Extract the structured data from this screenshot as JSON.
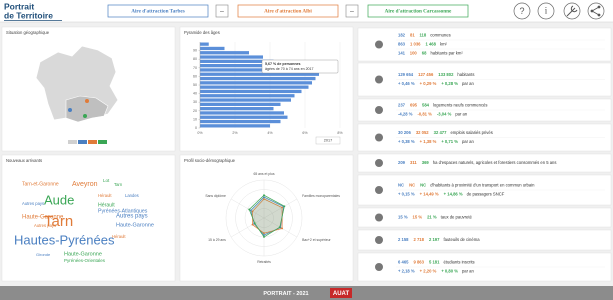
{
  "header": {
    "title_line1": "Portrait",
    "title_line2": "de Territoire",
    "selectors": [
      {
        "label": "Aire d'attraction Tarbes",
        "color": "#4a7fc1"
      },
      {
        "label": "Aire d'attraction Albi",
        "color": "#e07b39"
      },
      {
        "label": "Aire d'attraction Carcassonne",
        "color": "#3aa655"
      }
    ],
    "remove_label": "–",
    "help_icon": "?",
    "info_icon": "i"
  },
  "map": {
    "title": "Situation géographique"
  },
  "chart_data": [
    {
      "type": "hbar",
      "title": "Pyramide des âges",
      "x": [
        0,
        5,
        10,
        15,
        20,
        25,
        30,
        35,
        40,
        45,
        50,
        55,
        60,
        65,
        70,
        75,
        80,
        85,
        90,
        95
      ],
      "values": [
        4.0,
        4.6,
        5.0,
        4.8,
        4.2,
        4.6,
        5.2,
        5.4,
        5.8,
        6.2,
        6.4,
        6.6,
        6.8,
        6.4,
        5.67,
        4.2,
        3.6,
        2.8,
        1.4,
        0.5
      ],
      "color": "#5b8fd9",
      "xlim": [
        0,
        8
      ],
      "xticks": [
        {
          "value": 0,
          "label": "0%"
        },
        {
          "value": 2,
          "label": "2%"
        },
        {
          "value": 4,
          "label": "4%"
        },
        {
          "value": 6,
          "label": "6%"
        },
        {
          "value": 8,
          "label": "8%"
        }
      ],
      "ylim": [
        0,
        100
      ],
      "yticks": [
        0,
        10,
        20,
        30,
        40,
        50,
        60,
        70,
        80,
        90
      ],
      "grid": true,
      "tooltip": [
        "5,67 % de personnes",
        "âgées de 70 à 74 ans en 2017"
      ],
      "legend": "2017"
    },
    {
      "type": "radar",
      "title": "Profil socio-démographique",
      "categories": [
        "65 ans et plus",
        "Familles monoparentales",
        "Bac+2 et supérieur",
        "Retraités",
        "15 à 29 ans",
        "Sans diplôme"
      ],
      "series": [
        {
          "color": "#4a7fc1",
          "values": [
            55,
            60,
            50,
            45,
            30,
            40
          ]
        },
        {
          "color": "#e07b39",
          "values": [
            50,
            55,
            55,
            40,
            35,
            35
          ]
        },
        {
          "color": "#3aa655",
          "values": [
            60,
            62,
            48,
            50,
            28,
            45
          ]
        }
      ],
      "rlim": [
        0,
        100
      ],
      "rticks": [
        25,
        50,
        75,
        100
      ]
    }
  ],
  "word_cloud": {
    "title": "Nouveaux arrivants",
    "words": [
      {
        "text": "Tarn-et-Garonne",
        "color": "#e07b39"
      },
      {
        "text": "Aveyron",
        "color": "#e07b39"
      },
      {
        "text": "Lot",
        "color": "#3aa655"
      },
      {
        "text": "Tarn",
        "color": "#3aa655"
      },
      {
        "text": "Hérault",
        "color": "#e07b39"
      },
      {
        "text": "Landes",
        "color": "#4a7fc1"
      },
      {
        "text": "Autres pays",
        "color": "#4a7fc1"
      },
      {
        "text": "Aude",
        "color": "#3aa655"
      },
      {
        "text": "Hérault",
        "color": "#3aa655"
      },
      {
        "text": "Pyrénées-Atlantiques",
        "color": "#4a7fc1"
      },
      {
        "text": "Haute-Garonne",
        "color": "#e07b39"
      },
      {
        "text": "Tarn",
        "color": "#e07b39"
      },
      {
        "text": "Autres pays",
        "color": "#4a7fc1"
      },
      {
        "text": "Autres pays",
        "color": "#e07b39"
      },
      {
        "text": "Haute-Garonne",
        "color": "#4a7fc1"
      },
      {
        "text": "Hautes-Pyrénées",
        "color": "#4a7fc1"
      },
      {
        "text": "Hérault",
        "color": "#e07b39"
      },
      {
        "text": "Gironde",
        "color": "#4a7fc1"
      },
      {
        "text": "Haute-Garonne",
        "color": "#3aa655"
      },
      {
        "text": "Pyrénées-Orientales",
        "color": "#3aa655"
      }
    ]
  },
  "indicators": [
    {
      "lines": [
        {
          "values": [
            "182",
            "81",
            "118"
          ],
          "text": "communes"
        },
        {
          "values": [
            "863",
            "1 036",
            "1 468"
          ],
          "text": "km²"
        },
        {
          "values": [
            "141",
            "100",
            "68"
          ],
          "text": "habitants par km²"
        }
      ]
    },
    {
      "lines": [
        {
          "values": [
            "129 654",
            "127 456",
            "133 802"
          ],
          "text": "habitants"
        },
        {
          "values": [
            "+ 0,46 %",
            "+ 0,29 %",
            "+ 0,28 %"
          ],
          "text": "par an"
        }
      ]
    },
    {
      "lines": [
        {
          "values": [
            "237",
            "695",
            "584"
          ],
          "text": "logements neufs commencés"
        },
        {
          "values": [
            "-4,28 %",
            "-0,81 %",
            "-3,04 %"
          ],
          "text": "par an"
        }
      ]
    },
    {
      "lines": [
        {
          "values": [
            "30 206",
            "32 052",
            "32 477"
          ],
          "text": "emplois salariés privés"
        },
        {
          "values": [
            "+ 0,38 %",
            "+ 1,38 %",
            "+ 0,71 %"
          ],
          "text": "par an"
        }
      ]
    },
    {
      "lines": [
        {
          "values": [
            "209",
            "311",
            "369"
          ],
          "text": "ha d'espaces naturels, agricoles et forestiers consommés en 5 ans"
        }
      ]
    },
    {
      "lines": [
        {
          "values": [
            "NC",
            "NC",
            "NC"
          ],
          "text": "d'habitants à proximité d'un transport en commun urbain"
        },
        {
          "values": [
            "+ 0,15 %",
            "+ 14,49 %",
            "+ 14,86 %"
          ],
          "text": "de passagers SNCF"
        }
      ]
    },
    {
      "lines": [
        {
          "values": [
            "15 %",
            "15 %",
            "21 %"
          ],
          "text": "taux de pauvreté"
        }
      ]
    },
    {
      "lines": [
        {
          "values": [
            "2 158",
            "2 718",
            "2 197"
          ],
          "text": "fauteuils de cinéma"
        }
      ]
    },
    {
      "lines": [
        {
          "values": [
            "6 465",
            "9 863",
            "5 181"
          ],
          "text": "étudiants inscrits"
        },
        {
          "values": [
            "+ 2,18 %",
            "+ 2,20 %",
            "+ 0,80 %"
          ],
          "text": "par an"
        }
      ]
    }
  ],
  "footer": {
    "text": "PORTRAIT - 2021",
    "logo": "AUAT"
  }
}
